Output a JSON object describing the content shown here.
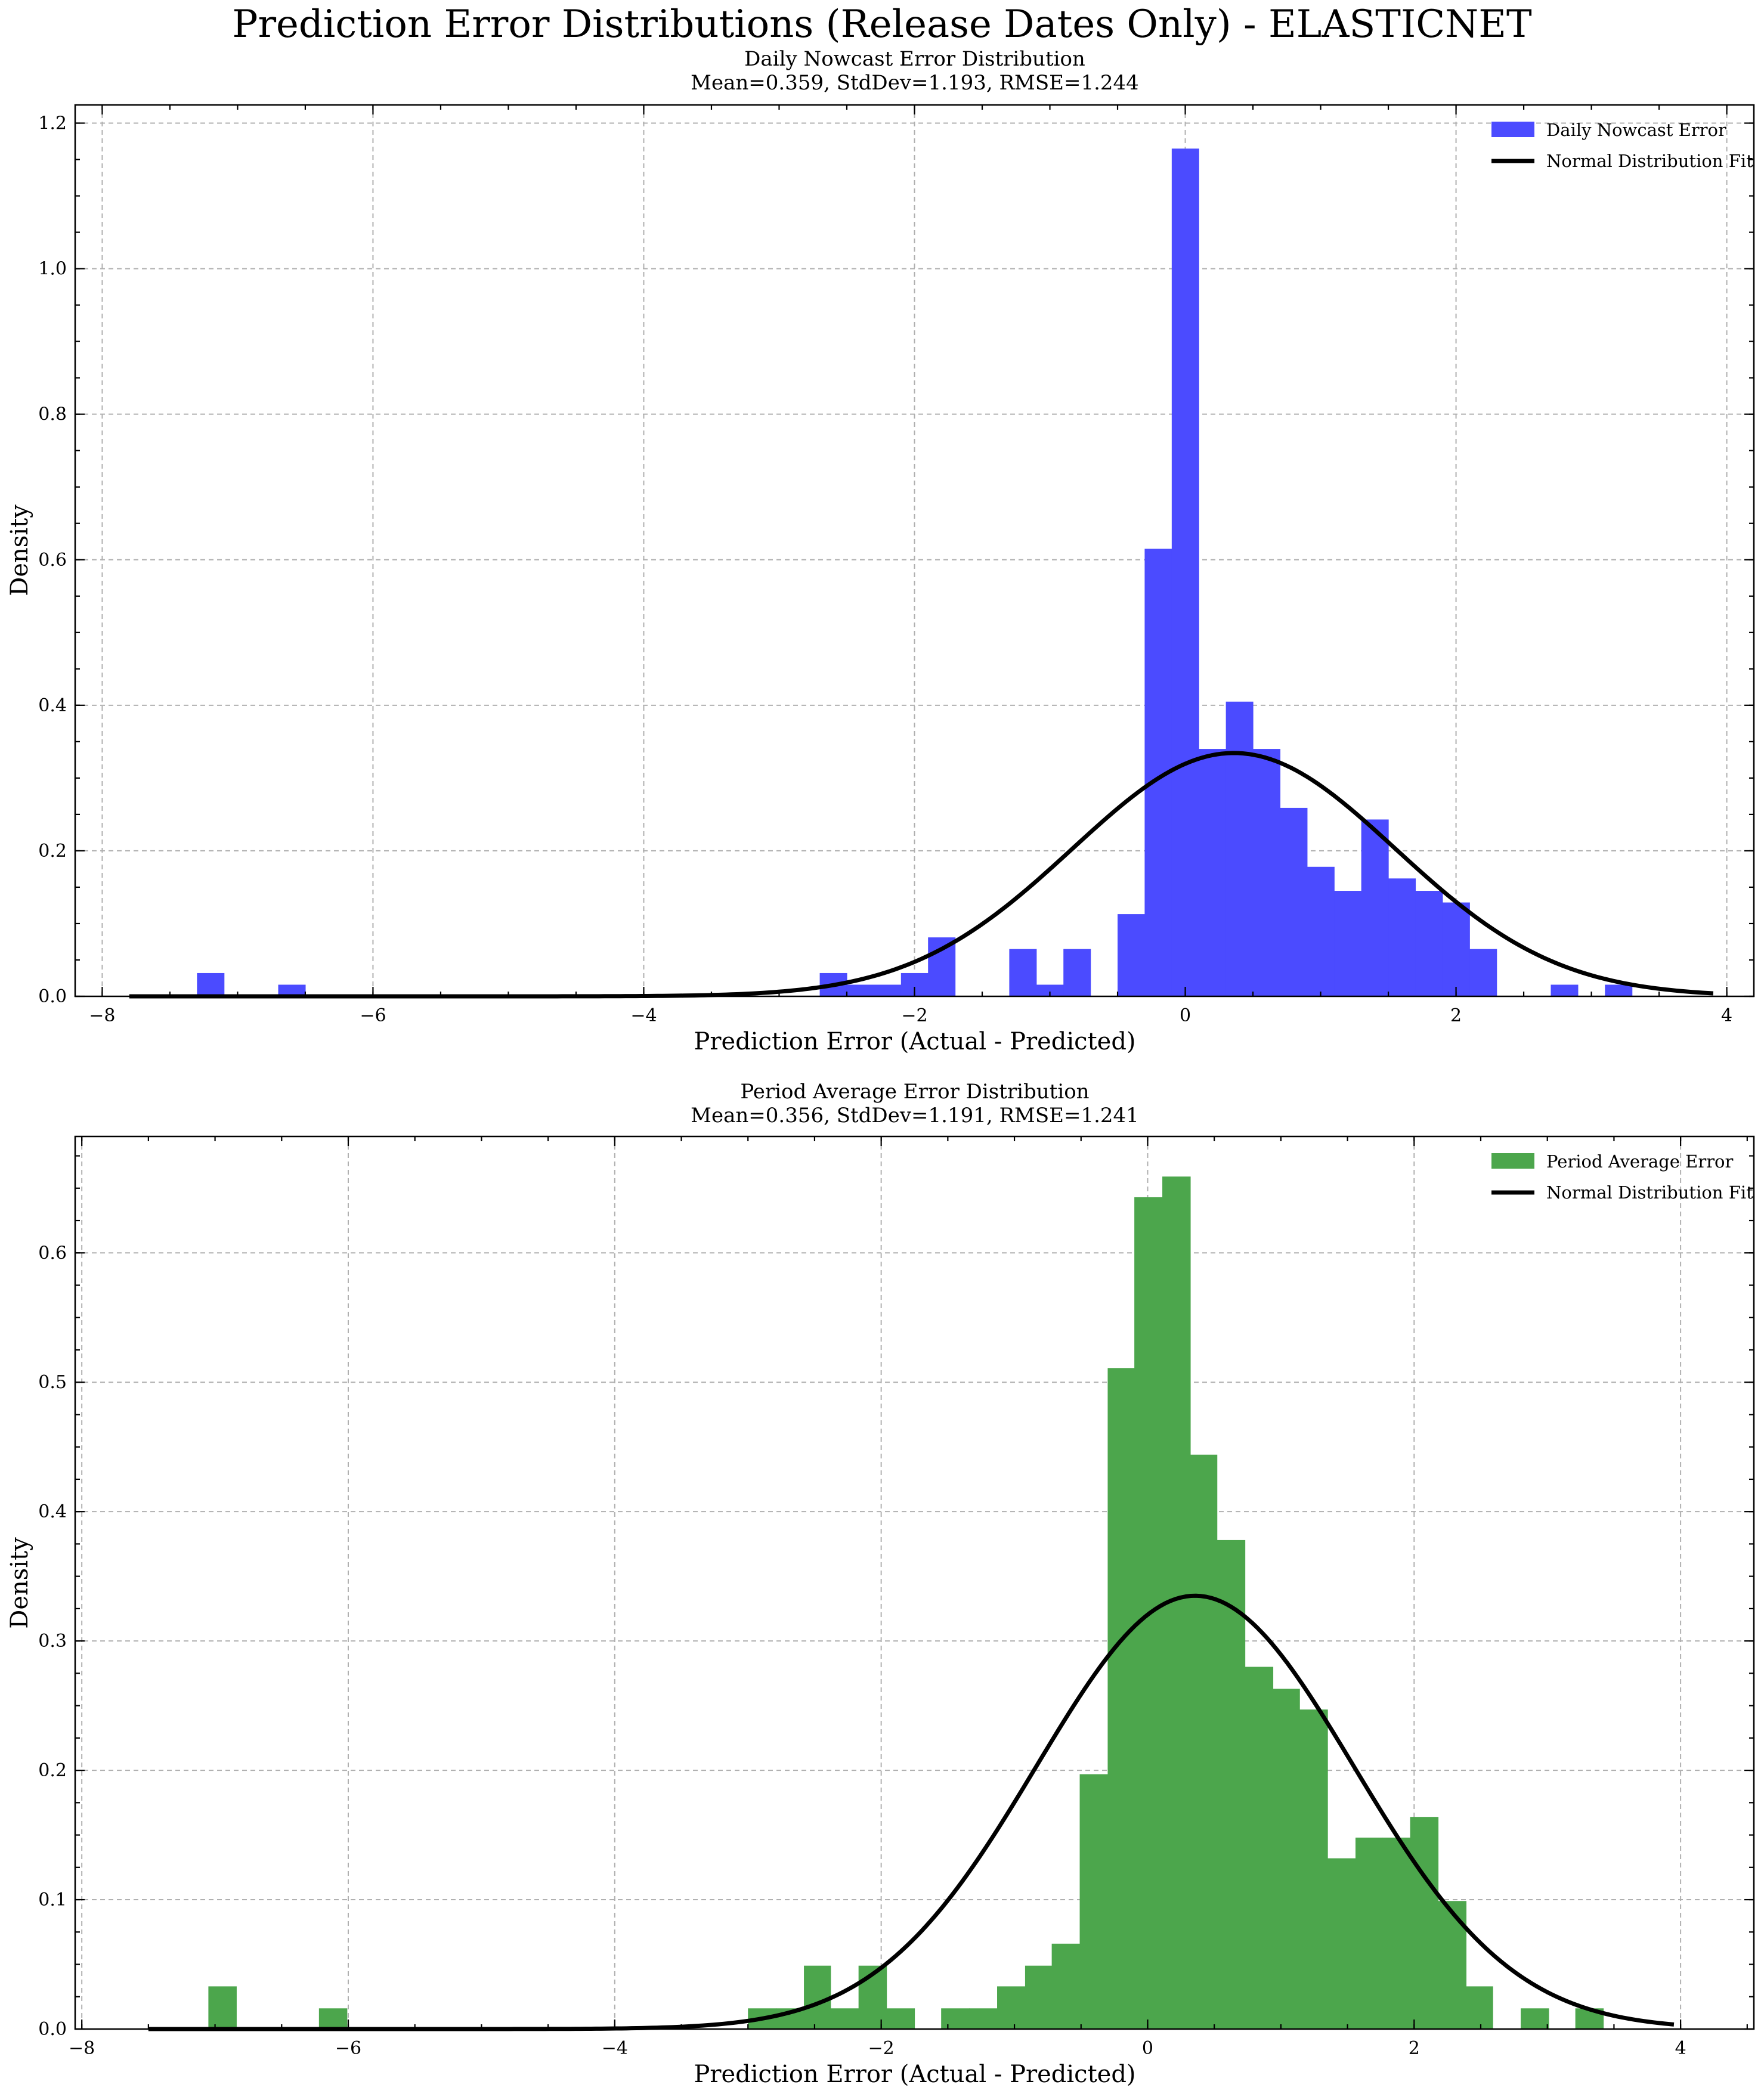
{
  "figure": {
    "suptitle": "Prediction Error Distributions (Release Dates Only) - ELASTICNET"
  },
  "chart_data": [
    {
      "type": "histogram",
      "title": "Daily Nowcast Error Distribution",
      "subtitle": "Mean=0.359, StdDev=1.193, RMSE=1.244",
      "xlabel": "Prediction Error (Actual - Predicted)",
      "ylabel": "Density",
      "xlim": [
        -8.2,
        4.2
      ],
      "ylim": [
        0,
        1.225
      ],
      "xticks": [
        -8,
        -6,
        -4,
        -2,
        0,
        2,
        4
      ],
      "yticks": [
        0.0,
        0.2,
        0.4,
        0.6,
        0.8,
        1.0,
        1.2
      ],
      "grid": true,
      "legend_position": "top-right",
      "bar_color": "#4b4bff",
      "fit": {
        "mean": 0.359,
        "std": 1.193,
        "x_range": [
          -7.8,
          3.9
        ]
      },
      "series": [
        {
          "name": "Daily Nowcast Error",
          "kind": "bars"
        },
        {
          "name": "Normal Distribution Fit",
          "kind": "line"
        }
      ],
      "bins": [
        {
          "x0": -7.3,
          "x1": -7.1,
          "density": 0.032
        },
        {
          "x0": -6.7,
          "x1": -6.5,
          "density": 0.016
        },
        {
          "x0": -2.7,
          "x1": -2.5,
          "density": 0.032
        },
        {
          "x0": -2.5,
          "x1": -2.3,
          "density": 0.016
        },
        {
          "x0": -2.3,
          "x1": -2.1,
          "density": 0.016
        },
        {
          "x0": -2.1,
          "x1": -1.9,
          "density": 0.032
        },
        {
          "x0": -1.9,
          "x1": -1.7,
          "density": 0.081
        },
        {
          "x0": -1.3,
          "x1": -1.1,
          "density": 0.065
        },
        {
          "x0": -1.1,
          "x1": -0.9,
          "density": 0.016
        },
        {
          "x0": -0.9,
          "x1": -0.7,
          "density": 0.065
        },
        {
          "x0": -0.5,
          "x1": -0.3,
          "density": 0.113
        },
        {
          "x0": -0.3,
          "x1": -0.1,
          "density": 0.615
        },
        {
          "x0": -0.1,
          "x1": 0.1,
          "density": 1.165
        },
        {
          "x0": 0.1,
          "x1": 0.3,
          "density": 0.34
        },
        {
          "x0": 0.3,
          "x1": 0.5,
          "density": 0.405
        },
        {
          "x0": 0.5,
          "x1": 0.7,
          "density": 0.34
        },
        {
          "x0": 0.7,
          "x1": 0.9,
          "density": 0.259
        },
        {
          "x0": 0.9,
          "x1": 1.1,
          "density": 0.178
        },
        {
          "x0": 1.1,
          "x1": 1.3,
          "density": 0.145
        },
        {
          "x0": 1.3,
          "x1": 1.5,
          "density": 0.243
        },
        {
          "x0": 1.5,
          "x1": 1.7,
          "density": 0.162
        },
        {
          "x0": 1.7,
          "x1": 1.9,
          "density": 0.145
        },
        {
          "x0": 1.9,
          "x1": 2.1,
          "density": 0.129
        },
        {
          "x0": 2.1,
          "x1": 2.3,
          "density": 0.065
        },
        {
          "x0": 2.7,
          "x1": 2.9,
          "density": 0.016
        },
        {
          "x0": 3.1,
          "x1": 3.3,
          "density": 0.016
        }
      ]
    },
    {
      "type": "histogram",
      "title": "Period Average Error Distribution",
      "subtitle": "Mean=0.356, StdDev=1.191, RMSE=1.241",
      "xlabel": "Prediction Error (Actual - Predicted)",
      "ylabel": "Density",
      "xlim": [
        -8.05,
        4.55
      ],
      "ylim": [
        0,
        0.69
      ],
      "xticks": [
        -8,
        -6,
        -4,
        -2,
        0,
        2,
        4
      ],
      "yticks": [
        0.0,
        0.1,
        0.2,
        0.3,
        0.4,
        0.5,
        0.6
      ],
      "grid": true,
      "legend_position": "top-right",
      "bar_color": "#4ca64c",
      "fit": {
        "mean": 0.356,
        "std": 1.191,
        "x_range": [
          -7.5,
          3.95
        ]
      },
      "series": [
        {
          "name": "Period Average Error",
          "kind": "bars"
        },
        {
          "name": "Normal Distribution Fit",
          "kind": "line"
        }
      ],
      "bins": [
        {
          "x0": -7.05,
          "x1": -6.84,
          "density": 0.033
        },
        {
          "x0": -6.22,
          "x1": -6.01,
          "density": 0.016
        },
        {
          "x0": -3.0,
          "x1": -2.79,
          "density": 0.016
        },
        {
          "x0": -2.79,
          "x1": -2.58,
          "density": 0.016
        },
        {
          "x0": -2.58,
          "x1": -2.38,
          "density": 0.049
        },
        {
          "x0": -2.38,
          "x1": -2.17,
          "density": 0.016
        },
        {
          "x0": -2.17,
          "x1": -1.96,
          "density": 0.049
        },
        {
          "x0": -1.96,
          "x1": -1.75,
          "density": 0.016
        },
        {
          "x0": -1.55,
          "x1": -1.34,
          "density": 0.016
        },
        {
          "x0": -1.34,
          "x1": -1.13,
          "density": 0.016
        },
        {
          "x0": -1.13,
          "x1": -0.92,
          "density": 0.033
        },
        {
          "x0": -0.92,
          "x1": -0.72,
          "density": 0.049
        },
        {
          "x0": -0.72,
          "x1": -0.51,
          "density": 0.066
        },
        {
          "x0": -0.51,
          "x1": -0.3,
          "density": 0.197
        },
        {
          "x0": -0.3,
          "x1": -0.1,
          "density": 0.511
        },
        {
          "x0": -0.1,
          "x1": 0.11,
          "density": 0.643
        },
        {
          "x0": 0.11,
          "x1": 0.32,
          "density": 0.659
        },
        {
          "x0": 0.32,
          "x1": 0.52,
          "density": 0.444
        },
        {
          "x0": 0.52,
          "x1": 0.73,
          "density": 0.378
        },
        {
          "x0": 0.73,
          "x1": 0.94,
          "density": 0.28
        },
        {
          "x0": 0.94,
          "x1": 1.14,
          "density": 0.263
        },
        {
          "x0": 1.14,
          "x1": 1.35,
          "density": 0.247
        },
        {
          "x0": 1.35,
          "x1": 1.56,
          "density": 0.132
        },
        {
          "x0": 1.56,
          "x1": 1.76,
          "density": 0.148
        },
        {
          "x0": 1.76,
          "x1": 1.97,
          "density": 0.148
        },
        {
          "x0": 1.97,
          "x1": 2.18,
          "density": 0.164
        },
        {
          "x0": 2.18,
          "x1": 2.39,
          "density": 0.099
        },
        {
          "x0": 2.39,
          "x1": 2.59,
          "density": 0.033
        },
        {
          "x0": 2.8,
          "x1": 3.01,
          "density": 0.016
        },
        {
          "x0": 3.21,
          "x1": 3.42,
          "density": 0.016
        }
      ]
    }
  ]
}
